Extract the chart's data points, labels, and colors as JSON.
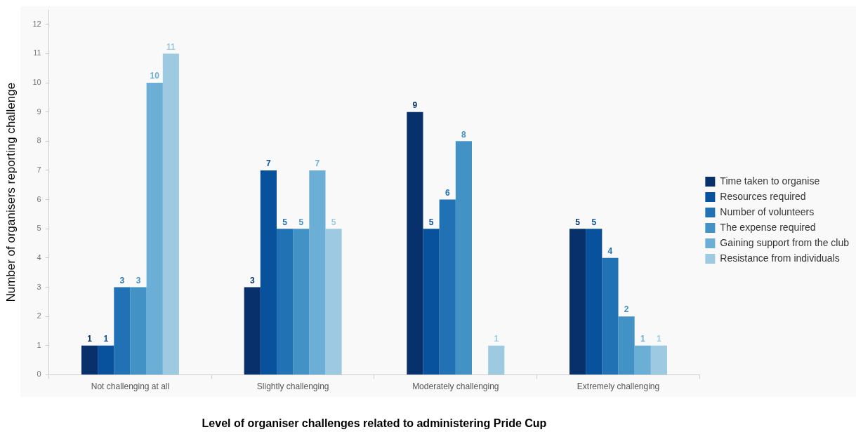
{
  "chart_data": {
    "type": "bar",
    "xlabel": "Level of organiser challenges related to administering Pride Cup",
    "ylabel": "Number of organisers reporting challenge",
    "categories": [
      "Not challenging at all",
      "Slightly challenging",
      "Moderately challenging",
      "Extremely challenging"
    ],
    "series": [
      {
        "name": "Time taken to organise",
        "color": "#08306b",
        "values": [
          1,
          3,
          9,
          5
        ]
      },
      {
        "name": "Resources required",
        "color": "#08519c",
        "values": [
          1,
          7,
          5,
          5
        ]
      },
      {
        "name": "Number of volunteers",
        "color": "#2171b5",
        "values": [
          3,
          5,
          6,
          4
        ]
      },
      {
        "name": "The expense required",
        "color": "#4292c6",
        "values": [
          3,
          5,
          8,
          2
        ]
      },
      {
        "name": "Gaining support from the club",
        "color": "#6baed6",
        "values": [
          10,
          7,
          null,
          1
        ]
      },
      {
        "name": "Resistance from individuals",
        "color": "#9ecae1",
        "values": [
          11,
          5,
          1,
          1
        ]
      }
    ],
    "ylim": [
      0,
      12.5
    ],
    "yticks": [
      0,
      1,
      2,
      3,
      4,
      5,
      6,
      7,
      8,
      9,
      10,
      11,
      12
    ],
    "data_labels": true,
    "legend": "right",
    "grid": false
  }
}
